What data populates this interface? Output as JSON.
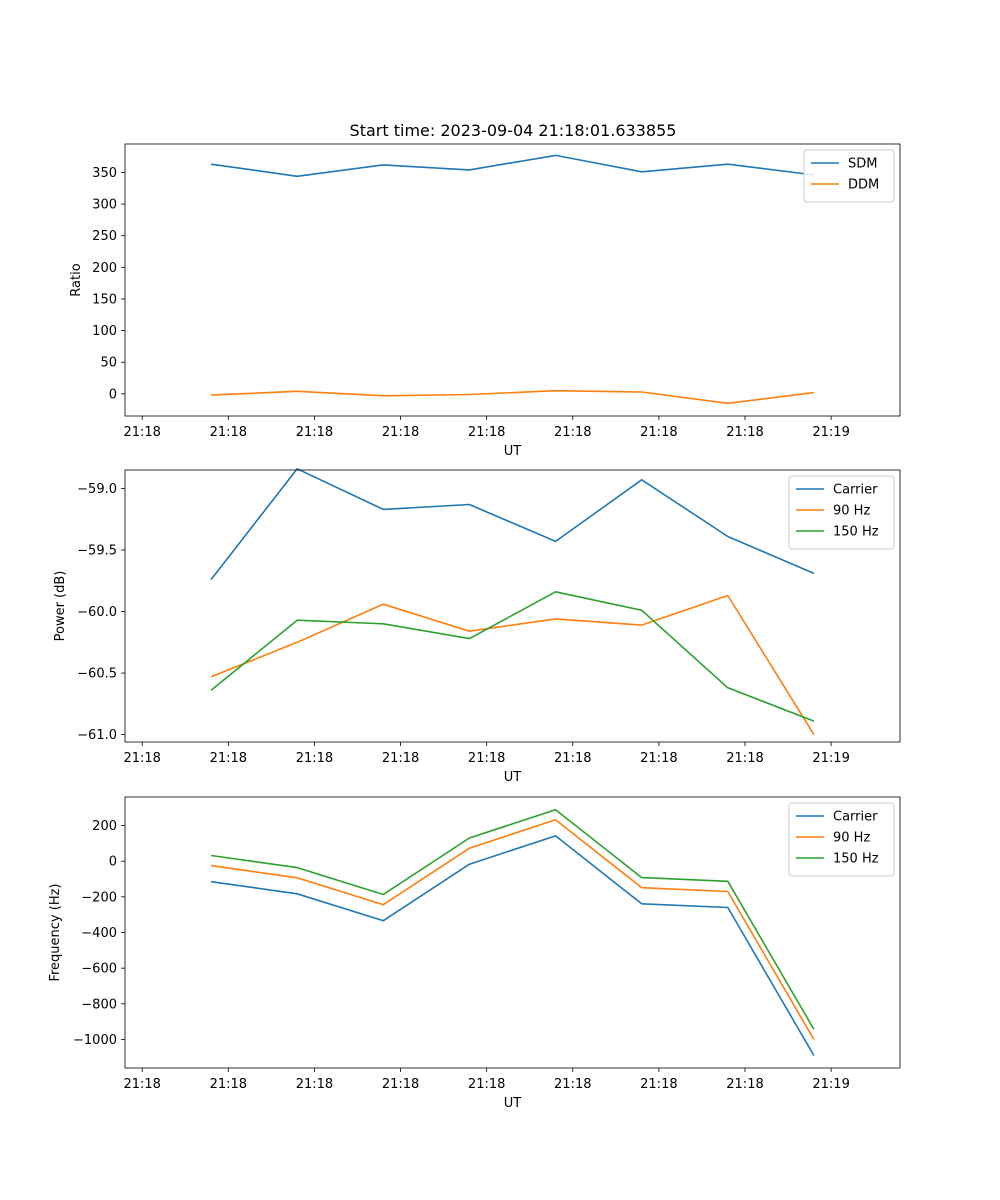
{
  "figure": {
    "title": "Start time: 2023-09-04 21:18:01.633855"
  },
  "chart_data": [
    {
      "type": "line",
      "ylabel": "Ratio",
      "xlabel": "UT",
      "x": [
        1,
        2,
        3,
        4,
        5,
        6,
        7,
        8
      ],
      "xlim": [
        0,
        9
      ],
      "xticks": [
        0.2,
        1.2,
        2.2,
        3.2,
        4.2,
        5.2,
        6.2,
        7.2,
        8.2
      ],
      "xticklabels": [
        "21:18",
        "21:18",
        "21:18",
        "21:18",
        "21:18",
        "21:18",
        "21:18",
        "21:18",
        "21:19"
      ],
      "ylim": [
        -35,
        395
      ],
      "yticks": [
        0,
        50,
        100,
        150,
        200,
        250,
        300,
        350
      ],
      "yticklabels": [
        "0",
        "50",
        "100",
        "150",
        "200",
        "250",
        "300",
        "350"
      ],
      "legend": "top-right",
      "series": [
        {
          "name": "SDM",
          "color": "#1f77b4",
          "values": [
            363,
            344,
            362,
            354,
            377,
            351,
            363,
            346
          ]
        },
        {
          "name": "DDM",
          "color": "#ff7f0e",
          "values": [
            -2,
            4,
            -3,
            -1,
            5,
            3,
            -15,
            2
          ]
        }
      ]
    },
    {
      "type": "line",
      "ylabel": "Power (dB)",
      "xlabel": "UT",
      "x": [
        1,
        2,
        3,
        4,
        5,
        6,
        7,
        8
      ],
      "xlim": [
        0,
        9
      ],
      "xticks": [
        0.2,
        1.2,
        2.2,
        3.2,
        4.2,
        5.2,
        6.2,
        7.2,
        8.2
      ],
      "xticklabels": [
        "21:18",
        "21:18",
        "21:18",
        "21:18",
        "21:18",
        "21:18",
        "21:18",
        "21:18",
        "21:19"
      ],
      "ylim": [
        -61.06,
        -58.85
      ],
      "yticks": [
        -61.0,
        -60.5,
        -60.0,
        -59.5,
        -59.0
      ],
      "yticklabels": [
        "−61.0",
        "−60.5",
        "−60.0",
        "−59.5",
        "−59.0"
      ],
      "legend": "top-right",
      "series": [
        {
          "name": "Carrier",
          "color": "#1f77b4",
          "values": [
            -59.74,
            -58.84,
            -59.17,
            -59.13,
            -59.43,
            -58.93,
            -59.39,
            -59.69
          ]
        },
        {
          "name": "90 Hz",
          "color": "#ff7f0e",
          "values": [
            -60.53,
            -60.25,
            -59.94,
            -60.16,
            -60.06,
            -60.11,
            -59.87,
            -61.0
          ]
        },
        {
          "name": "150 Hz",
          "color": "#2ca02c",
          "values": [
            -60.64,
            -60.07,
            -60.1,
            -60.22,
            -59.84,
            -59.99,
            -60.62,
            -60.89
          ]
        }
      ]
    },
    {
      "type": "line",
      "ylabel": "Frequency (Hz)",
      "xlabel": "UT",
      "x": [
        1,
        2,
        3,
        4,
        5,
        6,
        7,
        8
      ],
      "xlim": [
        0,
        9
      ],
      "xticks": [
        0.2,
        1.2,
        2.2,
        3.2,
        4.2,
        5.2,
        6.2,
        7.2,
        8.2
      ],
      "xticklabels": [
        "21:18",
        "21:18",
        "21:18",
        "21:18",
        "21:18",
        "21:18",
        "21:18",
        "21:18",
        "21:19"
      ],
      "ylim": [
        -1160,
        360
      ],
      "yticks": [
        -1000,
        -800,
        -600,
        -400,
        -200,
        0,
        200
      ],
      "yticklabels": [
        "−1000",
        "−800",
        "−600",
        "−400",
        "−200",
        "0",
        "200"
      ],
      "legend": "top-right",
      "series": [
        {
          "name": "Carrier",
          "color": "#1f77b4",
          "values": [
            -115,
            -183,
            -334,
            -17,
            142,
            -239,
            -260,
            -1090
          ]
        },
        {
          "name": "90 Hz",
          "color": "#ff7f0e",
          "values": [
            -25,
            -93,
            -244,
            73,
            232,
            -149,
            -170,
            -1000
          ]
        },
        {
          "name": "150 Hz",
          "color": "#2ca02c",
          "values": [
            32,
            -36,
            -187,
            130,
            289,
            -92,
            -113,
            -943
          ]
        }
      ]
    }
  ]
}
